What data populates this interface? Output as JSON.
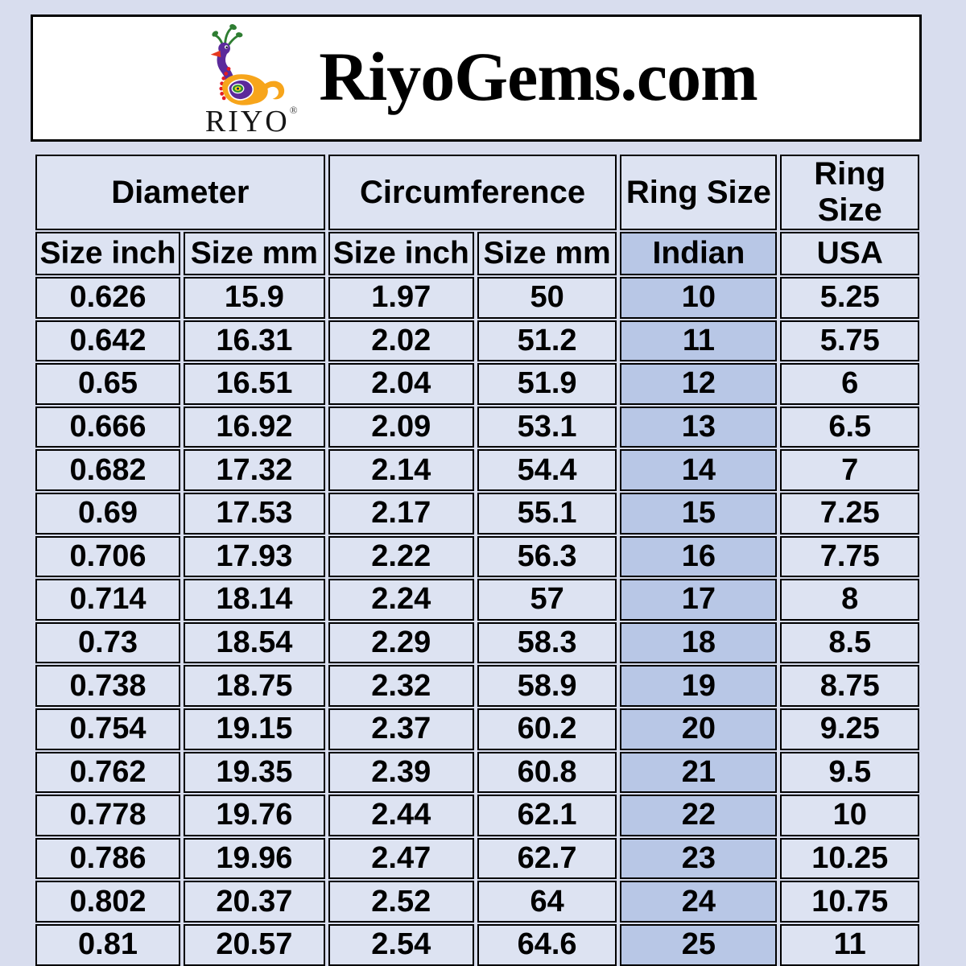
{
  "header": {
    "brand": "RIYO",
    "registered_mark": "®",
    "title": "RiyoGems.com",
    "logo_icon": "peacock-logo"
  },
  "table": {
    "groups": [
      {
        "label": "Diameter"
      },
      {
        "label": "Circumference"
      },
      {
        "label": "Ring Size"
      },
      {
        "label": "Ring Size"
      }
    ],
    "subheaders": [
      {
        "label": "Size inch"
      },
      {
        "label": "Size mm"
      },
      {
        "label": "Size inch"
      },
      {
        "label": "Size mm"
      },
      {
        "label": "Indian"
      },
      {
        "label": "USA"
      }
    ]
  },
  "chart_data": {
    "type": "table",
    "title": "RiyoGems.com ring size conversion chart",
    "column_groups": [
      "Diameter",
      "Diameter",
      "Circumference",
      "Circumference",
      "Ring Size",
      "Ring Size"
    ],
    "columns": [
      "Size inch",
      "Size mm",
      "Size inch",
      "Size mm",
      "Indian",
      "USA"
    ],
    "rows": [
      [
        "0.626",
        "15.9",
        "1.97",
        "50",
        "10",
        "5.25"
      ],
      [
        "0.642",
        "16.31",
        "2.02",
        "51.2",
        "11",
        "5.75"
      ],
      [
        "0.65",
        "16.51",
        "2.04",
        "51.9",
        "12",
        "6"
      ],
      [
        "0.666",
        "16.92",
        "2.09",
        "53.1",
        "13",
        "6.5"
      ],
      [
        "0.682",
        "17.32",
        "2.14",
        "54.4",
        "14",
        "7"
      ],
      [
        "0.69",
        "17.53",
        "2.17",
        "55.1",
        "15",
        "7.25"
      ],
      [
        "0.706",
        "17.93",
        "2.22",
        "56.3",
        "16",
        "7.75"
      ],
      [
        "0.714",
        "18.14",
        "2.24",
        "57",
        "17",
        "8"
      ],
      [
        "0.73",
        "18.54",
        "2.29",
        "58.3",
        "18",
        "8.5"
      ],
      [
        "0.738",
        "18.75",
        "2.32",
        "58.9",
        "19",
        "8.75"
      ],
      [
        "0.754",
        "19.15",
        "2.37",
        "60.2",
        "20",
        "9.25"
      ],
      [
        "0.762",
        "19.35",
        "2.39",
        "60.8",
        "21",
        "9.5"
      ],
      [
        "0.778",
        "19.76",
        "2.44",
        "62.1",
        "22",
        "10"
      ],
      [
        "0.786",
        "19.96",
        "2.47",
        "62.7",
        "23",
        "10.25"
      ],
      [
        "0.802",
        "20.37",
        "2.52",
        "64",
        "24",
        "10.75"
      ],
      [
        "0.81",
        "20.57",
        "2.54",
        "64.6",
        "25",
        "11"
      ]
    ]
  },
  "colors": {
    "page_bg": "#d8ddee",
    "cell_bg": "#dde3f2",
    "indian_column_bg": "#b8c7e6",
    "header_box_bg": "#ffffff",
    "border": "#000000",
    "logo_green": "#2e7d32",
    "logo_purple": "#5b2a9b",
    "logo_orange": "#f7a51b",
    "logo_red": "#e31b23"
  }
}
